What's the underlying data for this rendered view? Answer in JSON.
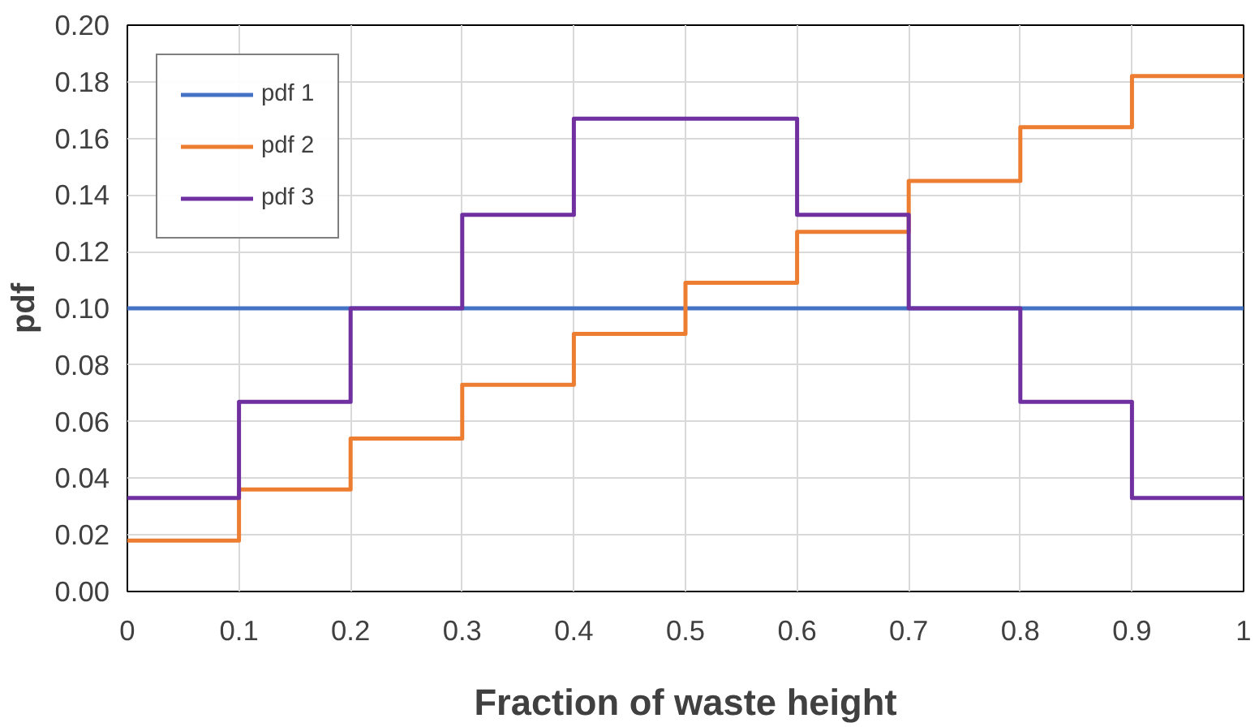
{
  "chart_data": {
    "type": "step",
    "xlabel": "Fraction of waste height",
    "ylabel": "pdf",
    "x": [
      0,
      0.1,
      0.2,
      0.3,
      0.4,
      0.5,
      0.6,
      0.7,
      0.8,
      0.9,
      1
    ],
    "series": [
      {
        "name": "pdf 1",
        "color": "#4472c4",
        "values": [
          0.1,
          0.1,
          0.1,
          0.1,
          0.1,
          0.1,
          0.1,
          0.1,
          0.1,
          0.1,
          0.1
        ]
      },
      {
        "name": "pdf 2",
        "color": "#ed7d31",
        "values": [
          0.018,
          0.036,
          0.054,
          0.073,
          0.091,
          0.109,
          0.127,
          0.145,
          0.164,
          0.182,
          0.182
        ]
      },
      {
        "name": "pdf 3",
        "color": "#7030a0",
        "values": [
          0.033,
          0.067,
          0.1,
          0.133,
          0.167,
          0.167,
          0.133,
          0.1,
          0.067,
          0.033,
          0.033
        ]
      }
    ],
    "xlim": [
      0,
      1
    ],
    "ylim": [
      0,
      0.2
    ],
    "xticks": [
      0,
      0.1,
      0.2,
      0.3,
      0.4,
      0.5,
      0.6,
      0.7,
      0.8,
      0.9,
      1
    ],
    "yticks": [
      {
        "value": 0,
        "label": "0.00"
      },
      {
        "value": 0.02,
        "label": "0.02"
      },
      {
        "value": 0.04,
        "label": "0.04"
      },
      {
        "value": 0.06,
        "label": "0.06"
      },
      {
        "value": 0.08,
        "label": "0.08"
      },
      {
        "value": 0.1,
        "label": "0.10"
      },
      {
        "value": 0.12,
        "label": "0.12"
      },
      {
        "value": 0.14,
        "label": "0.14"
      },
      {
        "value": 0.16,
        "label": "0.16"
      },
      {
        "value": 0.18,
        "label": "0.18"
      },
      {
        "value": 0.2,
        "label": "0.20"
      }
    ],
    "grid": true,
    "legend": "top left",
    "marker": "none",
    "line_style": "solid"
  }
}
